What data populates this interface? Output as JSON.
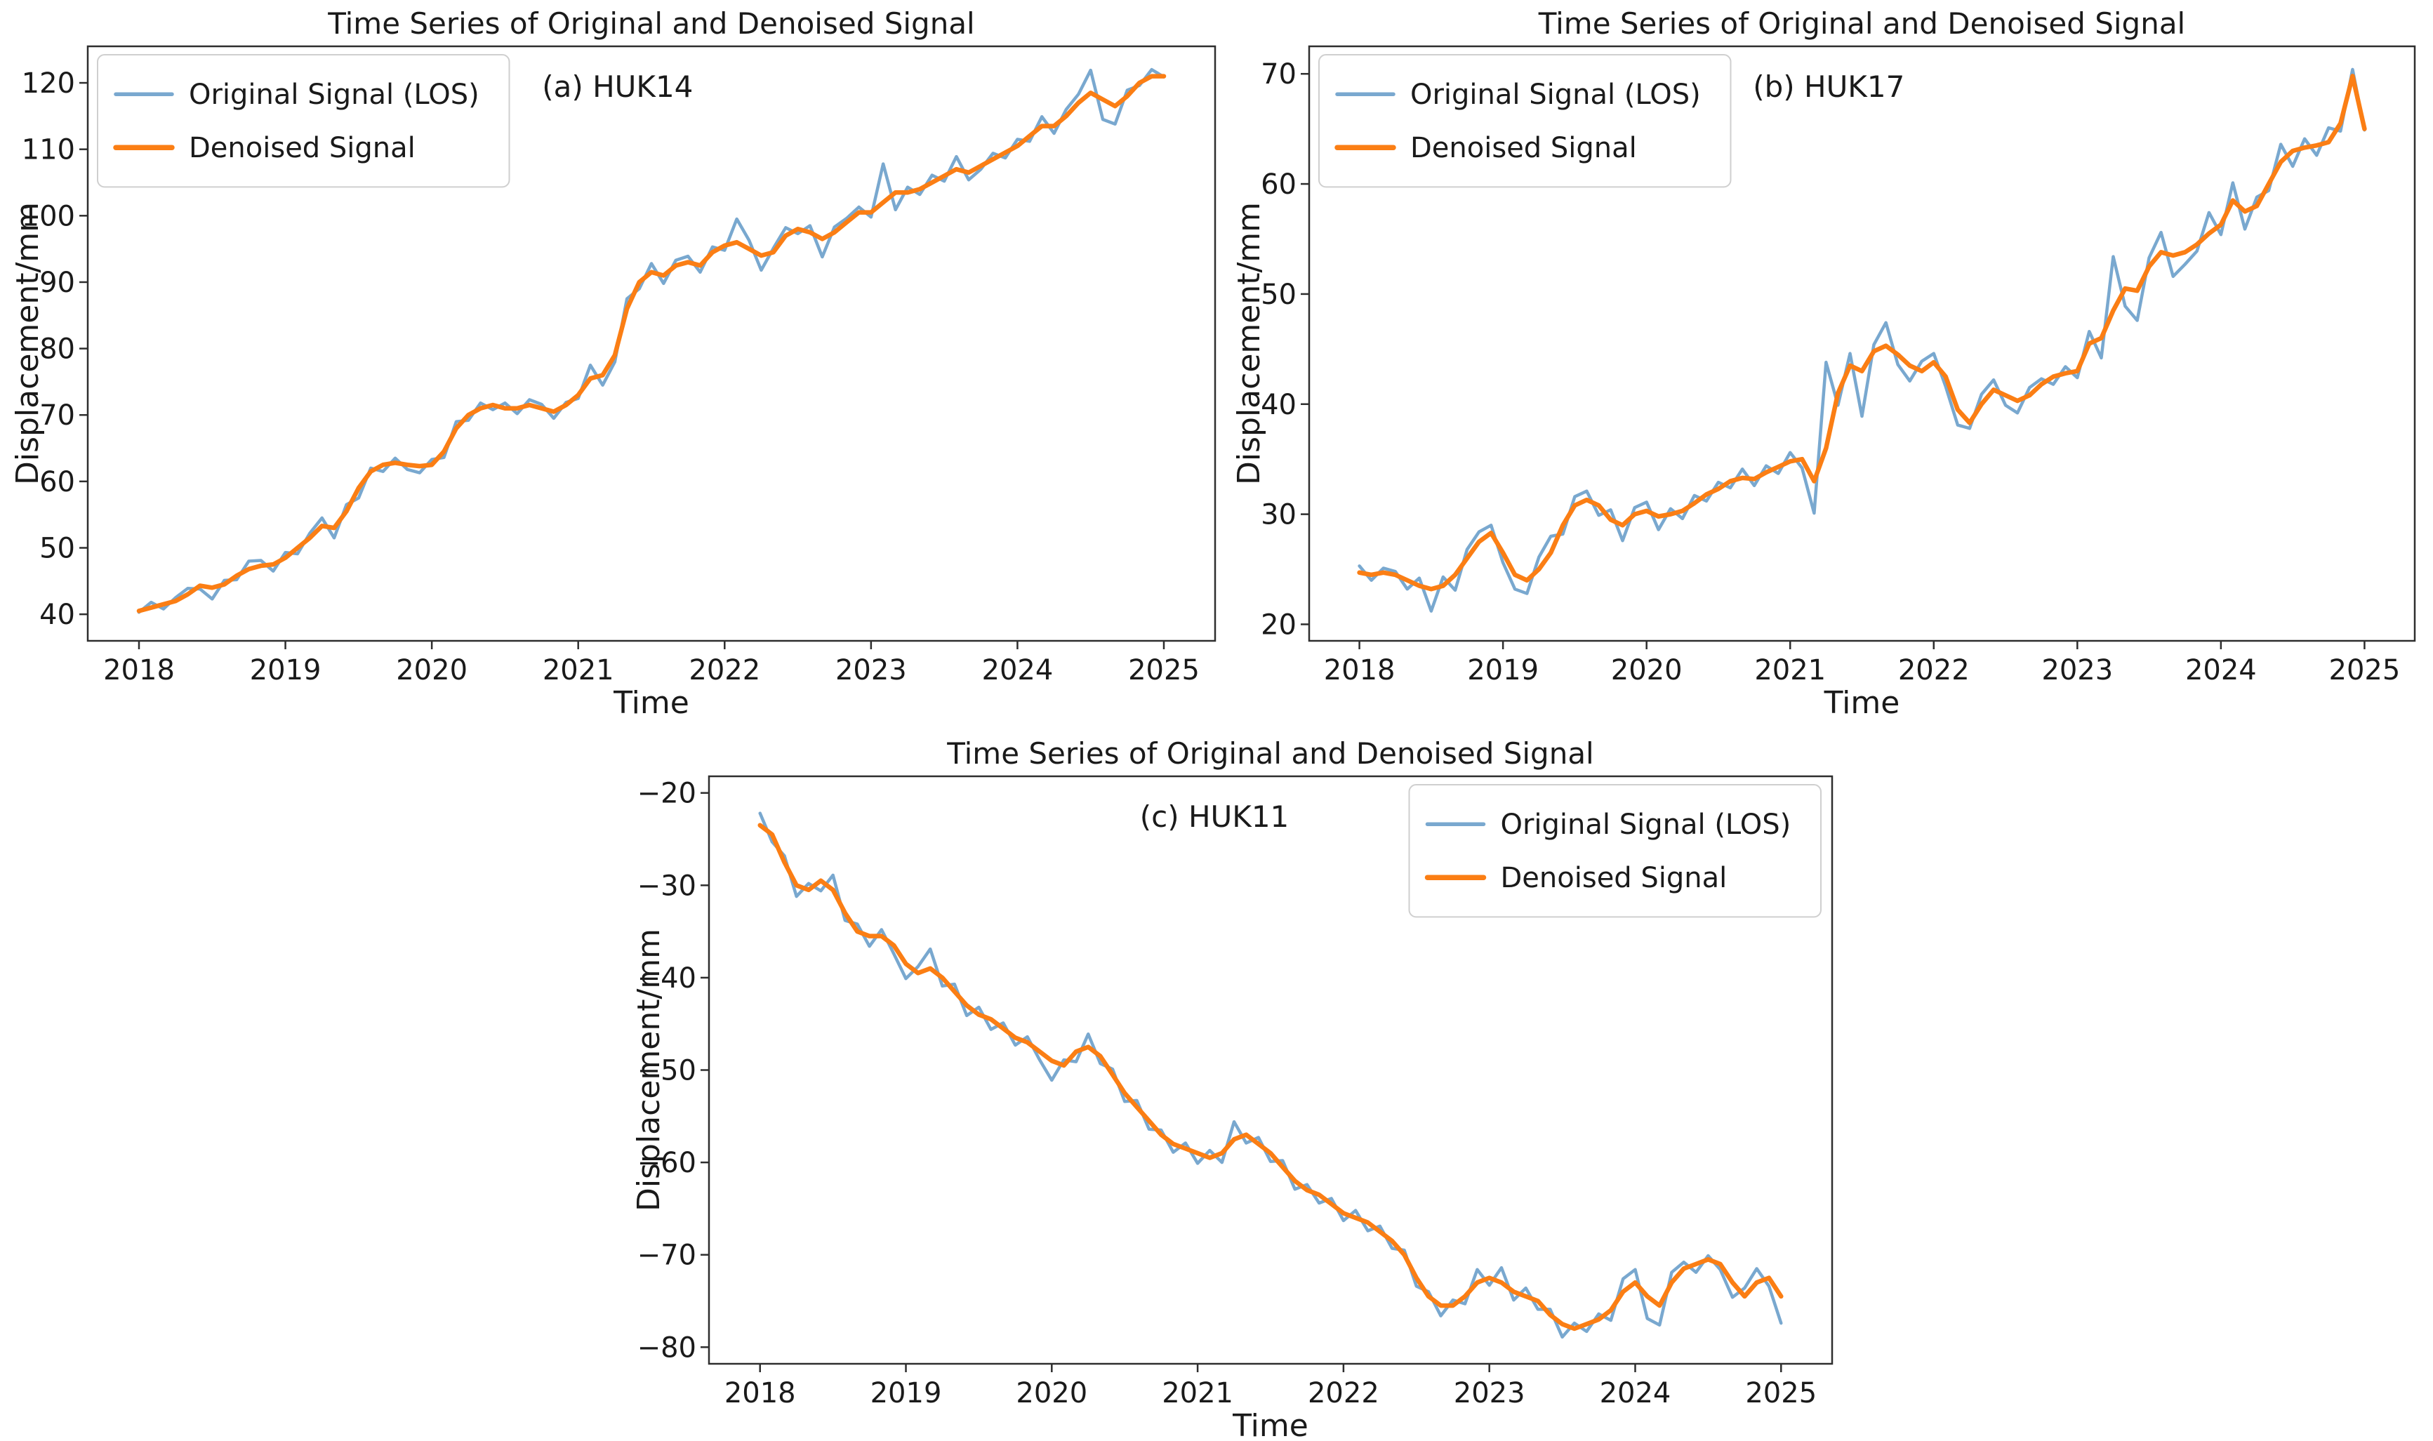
{
  "figure": {
    "background": "#ffffff",
    "shared_title": "Time Series of Original and Denoised Signal",
    "xlabel": "Time",
    "ylabel": "Displacement/mm"
  },
  "colors": {
    "original_signal": "#79a8cf",
    "denoised_signal": "#fb7e14",
    "axis": "#2e2e2e",
    "legend_border": "#cfcfcf",
    "legend_bg": "#ffffff",
    "text": "#1a1a1a"
  },
  "legend_labels": [
    "Original Signal (LOS)",
    "Denoised Signal"
  ],
  "time_x": [
    2018.0,
    2018.083,
    2018.167,
    2018.25,
    2018.333,
    2018.417,
    2018.5,
    2018.583,
    2018.667,
    2018.75,
    2018.833,
    2018.917,
    2019.0,
    2019.083,
    2019.167,
    2019.25,
    2019.333,
    2019.417,
    2019.5,
    2019.583,
    2019.667,
    2019.75,
    2019.833,
    2019.917,
    2020.0,
    2020.083,
    2020.167,
    2020.25,
    2020.333,
    2020.417,
    2020.5,
    2020.583,
    2020.667,
    2020.75,
    2020.833,
    2020.917,
    2021.0,
    2021.083,
    2021.167,
    2021.25,
    2021.333,
    2021.417,
    2021.5,
    2021.583,
    2021.667,
    2021.75,
    2021.833,
    2021.917,
    2022.0,
    2022.083,
    2022.167,
    2022.25,
    2022.333,
    2022.417,
    2022.5,
    2022.583,
    2022.667,
    2022.75,
    2022.833,
    2022.917,
    2023.0,
    2023.083,
    2023.167,
    2023.25,
    2023.333,
    2023.417,
    2023.5,
    2023.583,
    2023.667,
    2023.75,
    2023.833,
    2023.917,
    2024.0,
    2024.083,
    2024.167,
    2024.25,
    2024.333,
    2024.417,
    2024.5,
    2024.583,
    2024.667,
    2024.75,
    2024.833,
    2024.917,
    2025.0
  ],
  "chart_data": [
    {
      "id": "huk14",
      "type": "line",
      "title": "Time Series of Original and Denoised Signal",
      "annotation": "(a) HUK14",
      "annotation_xfrac": 0.47,
      "xlabel": "Time",
      "ylabel": "Displacement/mm",
      "xlim": [
        2017.65,
        2025.35
      ],
      "ylim": [
        36.0,
        125.5
      ],
      "xticks": [
        2018,
        2019,
        2020,
        2021,
        2022,
        2023,
        2024,
        2025
      ],
      "yticks": [
        40,
        50,
        60,
        70,
        80,
        90,
        100,
        110,
        120
      ],
      "legend_loc": "upper-left",
      "grid": false,
      "series": [
        {
          "name": "Original Signal (LOS)",
          "color_key": "original_signal",
          "values": [
            40.3,
            41.8,
            40.8,
            42.5,
            43.9,
            43.8,
            42.3,
            45.1,
            45.2,
            48.0,
            48.1,
            46.5,
            49.3,
            49.1,
            52.2,
            54.5,
            51.5,
            56.5,
            57.5,
            62.0,
            61.5,
            63.5,
            61.8,
            61.3,
            63.3,
            63.6,
            69.0,
            69.2,
            71.8,
            70.8,
            71.8,
            70.2,
            72.3,
            71.6,
            69.5,
            71.9,
            72.5,
            77.5,
            74.5,
            78.0,
            87.5,
            89.0,
            92.8,
            89.8,
            93.3,
            93.9,
            91.5,
            95.3,
            94.8,
            99.5,
            96.3,
            91.8,
            95.1,
            98.2,
            97.3,
            98.5,
            93.8,
            98.3,
            99.6,
            101.3,
            99.8,
            107.8,
            100.9,
            104.3,
            103.2,
            106.1,
            105.2,
            108.9,
            105.4,
            107.0,
            109.4,
            108.7,
            111.5,
            111.2,
            114.9,
            112.4,
            116.0,
            118.3,
            121.9,
            114.5,
            113.8,
            118.9,
            119.6,
            122.0,
            120.9
          ]
        },
        {
          "name": "Denoised Signal",
          "color_key": "denoised_signal",
          "values": [
            40.5,
            41.0,
            41.5,
            42.0,
            43.0,
            44.3,
            44.0,
            44.5,
            45.8,
            46.8,
            47.3,
            47.5,
            48.5,
            50.0,
            51.5,
            53.3,
            53.0,
            55.5,
            59.0,
            61.5,
            62.5,
            62.8,
            62.5,
            62.3,
            62.5,
            64.5,
            68.0,
            70.0,
            71.0,
            71.5,
            71.0,
            71.0,
            71.5,
            71.0,
            70.5,
            71.5,
            73.0,
            75.5,
            76.0,
            79.0,
            86.0,
            90.0,
            91.5,
            91.0,
            92.5,
            93.0,
            92.5,
            94.5,
            95.5,
            96.0,
            95.0,
            94.0,
            94.5,
            97.0,
            98.0,
            97.5,
            96.5,
            97.5,
            99.0,
            100.5,
            100.5,
            102.0,
            103.5,
            103.5,
            104.0,
            105.0,
            106.0,
            107.0,
            106.5,
            107.5,
            108.5,
            109.5,
            110.5,
            112.0,
            113.5,
            113.5,
            115.0,
            117.0,
            118.5,
            117.5,
            116.5,
            118.0,
            120.0,
            121.0,
            121.0
          ]
        }
      ]
    },
    {
      "id": "huk17",
      "type": "line",
      "title": "Time Series of Original and Denoised Signal",
      "annotation": "(b) HUK17",
      "annotation_xfrac": 0.47,
      "xlabel": "Time",
      "ylabel": "Displacement/mm",
      "xlim": [
        2017.65,
        2025.35
      ],
      "ylim": [
        18.5,
        72.5
      ],
      "xticks": [
        2018,
        2019,
        2020,
        2021,
        2022,
        2023,
        2024,
        2025
      ],
      "yticks": [
        20,
        30,
        40,
        50,
        60,
        70
      ],
      "legend_loc": "upper-left",
      "grid": false,
      "series": [
        {
          "name": "Original Signal (LOS)",
          "color_key": "original_signal",
          "values": [
            25.3,
            24.0,
            25.1,
            24.8,
            23.2,
            24.2,
            21.2,
            24.3,
            23.1,
            26.8,
            28.4,
            29.0,
            25.6,
            23.2,
            22.8,
            26.1,
            28.0,
            28.2,
            31.6,
            32.1,
            29.9,
            30.4,
            27.6,
            30.6,
            31.1,
            28.6,
            30.5,
            29.6,
            31.7,
            31.2,
            32.9,
            32.4,
            34.1,
            32.6,
            34.4,
            33.7,
            35.6,
            34.2,
            30.1,
            43.8,
            39.9,
            44.6,
            38.9,
            45.4,
            47.4,
            43.6,
            42.1,
            43.9,
            44.6,
            41.6,
            38.1,
            37.8,
            40.9,
            42.2,
            39.9,
            39.2,
            41.5,
            42.3,
            41.8,
            43.4,
            42.4,
            46.6,
            44.2,
            53.4,
            48.9,
            47.6,
            53.3,
            55.6,
            51.6,
            52.7,
            53.9,
            57.4,
            55.4,
            60.1,
            55.9,
            58.8,
            59.4,
            63.6,
            61.6,
            64.1,
            62.6,
            65.1,
            64.8,
            70.4,
            64.9
          ]
        },
        {
          "name": "Denoised Signal",
          "color_key": "denoised_signal",
          "values": [
            24.7,
            24.5,
            24.7,
            24.5,
            24.0,
            23.5,
            23.2,
            23.5,
            24.5,
            26.0,
            27.5,
            28.3,
            26.5,
            24.5,
            24.0,
            25.0,
            26.5,
            29.0,
            30.8,
            31.3,
            30.8,
            29.5,
            29.0,
            30.0,
            30.3,
            29.8,
            30.0,
            30.3,
            31.0,
            31.8,
            32.3,
            33.0,
            33.3,
            33.2,
            33.8,
            34.3,
            34.8,
            35.0,
            33.0,
            36.0,
            41.0,
            43.5,
            43.0,
            44.8,
            45.3,
            44.5,
            43.5,
            43.0,
            43.8,
            42.5,
            39.5,
            38.3,
            40.0,
            41.3,
            40.8,
            40.3,
            40.8,
            41.8,
            42.5,
            42.8,
            43.0,
            45.5,
            46.0,
            48.5,
            50.5,
            50.3,
            52.5,
            53.8,
            53.5,
            53.8,
            54.5,
            55.5,
            56.3,
            58.5,
            57.5,
            58.0,
            60.0,
            62.0,
            63.0,
            63.3,
            63.5,
            63.8,
            65.5,
            69.8,
            65.0
          ]
        }
      ]
    },
    {
      "id": "huk11",
      "type": "line",
      "title": "Time Series of Original and Denoised Signal",
      "annotation": "(c) HUK11",
      "annotation_xfrac": 0.45,
      "xlabel": "Time",
      "ylabel": "Displacement/mm",
      "xlim": [
        2017.65,
        2025.35
      ],
      "ylim": [
        -81.8,
        -18.2
      ],
      "xticks": [
        2018,
        2019,
        2020,
        2021,
        2022,
        2023,
        2024,
        2025
      ],
      "yticks": [
        -20,
        -30,
        -40,
        -50,
        -60,
        -70,
        -80
      ],
      "legend_loc": "upper-right",
      "grid": false,
      "series": [
        {
          "name": "Original Signal (LOS)",
          "color_key": "original_signal",
          "values": [
            -22.2,
            -25.3,
            -26.8,
            -31.2,
            -29.8,
            -30.6,
            -28.9,
            -33.8,
            -34.2,
            -36.6,
            -34.8,
            -37.4,
            -40.1,
            -38.8,
            -36.9,
            -40.9,
            -40.7,
            -44.1,
            -43.2,
            -45.6,
            -44.9,
            -47.3,
            -46.4,
            -48.9,
            -51.1,
            -48.9,
            -49.1,
            -46.1,
            -49.3,
            -49.9,
            -53.4,
            -53.3,
            -56.4,
            -56.5,
            -58.9,
            -57.9,
            -60.1,
            -58.7,
            -60.0,
            -55.6,
            -57.9,
            -57.3,
            -59.9,
            -59.8,
            -62.9,
            -62.4,
            -64.4,
            -63.9,
            -66.3,
            -65.2,
            -67.4,
            -66.9,
            -69.3,
            -69.5,
            -73.4,
            -74.0,
            -76.6,
            -74.9,
            -75.3,
            -71.6,
            -73.3,
            -71.4,
            -74.9,
            -73.6,
            -75.9,
            -75.9,
            -78.9,
            -77.4,
            -78.3,
            -76.4,
            -77.1,
            -72.6,
            -71.6,
            -76.9,
            -77.6,
            -71.9,
            -70.8,
            -71.9,
            -70.1,
            -71.6,
            -74.6,
            -73.6,
            -71.5,
            -73.4,
            -77.4
          ]
        },
        {
          "name": "Denoised Signal",
          "color_key": "denoised_signal",
          "values": [
            -23.5,
            -24.5,
            -27.5,
            -30.0,
            -30.5,
            -29.5,
            -30.5,
            -33.0,
            -35.0,
            -35.5,
            -35.5,
            -36.5,
            -38.5,
            -39.5,
            -39.0,
            -40.0,
            -41.5,
            -43.0,
            -44.0,
            -44.5,
            -45.5,
            -46.5,
            -47.0,
            -48.0,
            -49.0,
            -49.5,
            -48.0,
            -47.5,
            -48.5,
            -50.5,
            -52.5,
            -54.0,
            -55.5,
            -57.0,
            -58.0,
            -58.5,
            -59.0,
            -59.5,
            -59.0,
            -57.5,
            -57.0,
            -58.0,
            -59.0,
            -60.5,
            -62.0,
            -63.0,
            -63.5,
            -64.5,
            -65.5,
            -66.0,
            -66.5,
            -67.5,
            -68.5,
            -70.0,
            -72.5,
            -74.5,
            -75.5,
            -75.5,
            -74.5,
            -73.0,
            -72.5,
            -73.0,
            -74.0,
            -74.5,
            -75.0,
            -76.5,
            -77.5,
            -78.0,
            -77.5,
            -77.0,
            -76.0,
            -74.0,
            -73.0,
            -74.5,
            -75.5,
            -73.0,
            -71.5,
            -71.0,
            -70.5,
            -71.0,
            -73.0,
            -74.5,
            -73.0,
            -72.5,
            -74.5
          ]
        }
      ]
    }
  ]
}
